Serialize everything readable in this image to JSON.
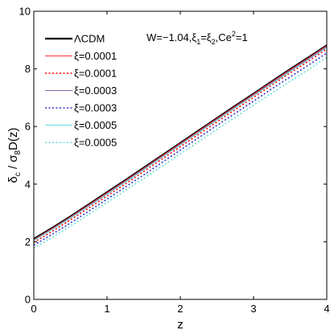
{
  "chart_data": {
    "type": "line",
    "xlabel": "z",
    "ylabel": "δc / σ8 D(z)",
    "xlim": [
      0,
      4
    ],
    "ylim": [
      0,
      10
    ],
    "xticks": [
      "0",
      "1",
      "2",
      "3",
      "4"
    ],
    "yticks": [
      "0",
      "2",
      "4",
      "6",
      "8",
      "10"
    ],
    "grid": false,
    "legend_position": "top-left",
    "annotation": "W=−1.04,ξ1=ξ2,Ce2=1",
    "annotation_parts": {
      "p1": "W=−1.04,ξ",
      "s1": "1",
      "p2": "=ξ",
      "s2": "2",
      "p3": ",Ce",
      "sup": "2",
      "p4": "=1"
    },
    "x": [
      0,
      0.25,
      0.5,
      0.75,
      1,
      1.25,
      1.5,
      1.75,
      2,
      2.25,
      2.5,
      2.75,
      3,
      3.25,
      3.5,
      3.75,
      4
    ],
    "series": [
      {
        "name": "ΛCDM",
        "color": "#000000",
        "dash": "solid",
        "width": 2.2,
        "values": [
          2.1,
          2.48,
          2.88,
          3.3,
          3.72,
          4.14,
          4.57,
          5.0,
          5.43,
          5.86,
          6.29,
          6.72,
          7.14,
          7.57,
          7.99,
          8.4,
          8.82
        ]
      },
      {
        "name": "ξ=0.0001",
        "color": "#ff3333",
        "dash": "solid",
        "width": 1,
        "values": [
          2.08,
          2.46,
          2.86,
          3.28,
          3.7,
          4.12,
          4.55,
          4.98,
          5.41,
          5.84,
          6.27,
          6.7,
          7.12,
          7.55,
          7.97,
          8.38,
          8.8
        ]
      },
      {
        "name": "ξ=0.0001",
        "color": "#ff0000",
        "dash": "dotted",
        "width": 1.6,
        "values": [
          1.98,
          2.36,
          2.76,
          3.17,
          3.59,
          4.01,
          4.44,
          4.87,
          5.3,
          5.73,
          6.16,
          6.59,
          7.01,
          7.44,
          7.86,
          8.27,
          8.69
        ]
      },
      {
        "name": "ξ=0.0003",
        "color": "#8060a0",
        "dash": "solid",
        "width": 1,
        "values": [
          2.06,
          2.44,
          2.84,
          3.25,
          3.67,
          4.09,
          4.52,
          4.95,
          5.38,
          5.81,
          6.24,
          6.67,
          7.09,
          7.52,
          7.94,
          8.35,
          8.77
        ]
      },
      {
        "name": "ξ=0.0003",
        "color": "#3333cc",
        "dash": "dotted",
        "width": 1.6,
        "values": [
          1.88,
          2.26,
          2.65,
          3.06,
          3.48,
          3.9,
          4.32,
          4.75,
          5.18,
          5.61,
          6.04,
          6.46,
          6.88,
          7.31,
          7.72,
          8.13,
          8.55
        ]
      },
      {
        "name": "ξ=0.0005",
        "color": "#66dddd",
        "dash": "solid",
        "width": 1,
        "values": [
          2.04,
          2.42,
          2.82,
          3.23,
          3.65,
          4.07,
          4.5,
          4.93,
          5.36,
          5.79,
          6.22,
          6.65,
          7.07,
          7.49,
          7.91,
          8.32,
          8.74
        ]
      },
      {
        "name": "ξ=0.0005",
        "color": "#66dddd",
        "dash": "dotted",
        "width": 1.6,
        "values": [
          1.78,
          2.15,
          2.54,
          2.95,
          3.36,
          3.78,
          4.2,
          4.62,
          5.05,
          5.47,
          5.9,
          6.32,
          6.74,
          7.16,
          7.57,
          7.98,
          8.4
        ]
      }
    ]
  }
}
